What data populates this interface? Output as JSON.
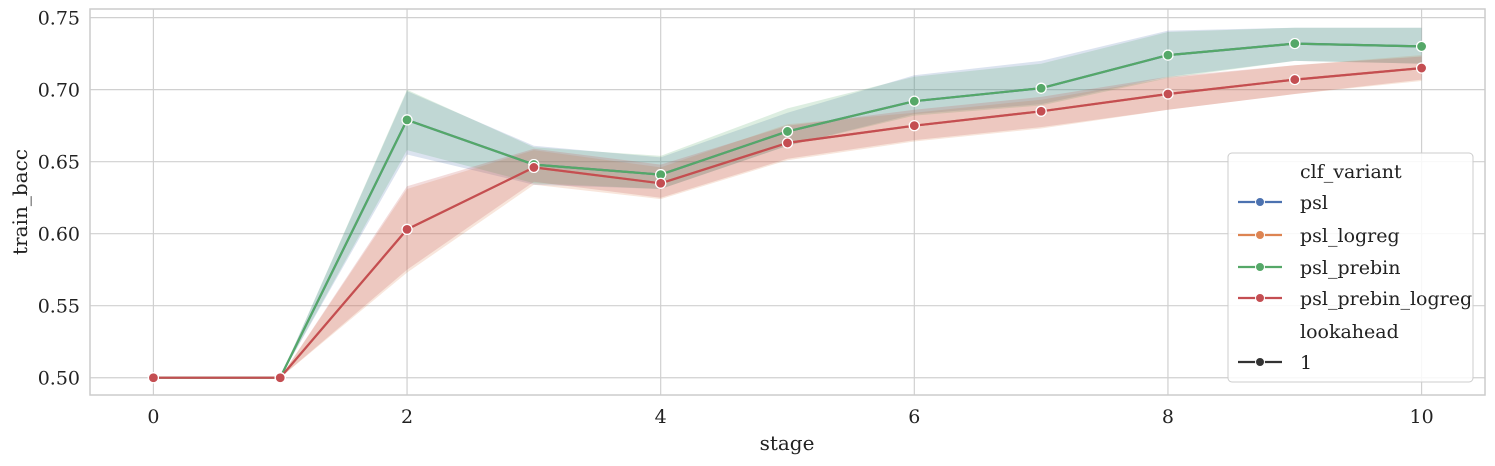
{
  "chart_data": {
    "type": "line",
    "title": "",
    "xlabel": "stage",
    "ylabel": "train_bacc",
    "xlim": [
      -0.5,
      10.5
    ],
    "ylim": [
      0.488,
      0.756
    ],
    "xticks": [
      0,
      2,
      4,
      6,
      8,
      10
    ],
    "xtick_labels": [
      "0",
      "2",
      "4",
      "6",
      "8",
      "10"
    ],
    "yticks": [
      0.5,
      0.55,
      0.6,
      0.65,
      0.7,
      0.75
    ],
    "ytick_labels": [
      "0.50",
      "0.55",
      "0.60",
      "0.65",
      "0.70",
      "0.75"
    ],
    "grid": true,
    "legend_position": "right",
    "x": [
      0,
      1,
      2,
      3,
      4,
      5,
      6,
      7,
      8,
      9,
      10
    ],
    "series": [
      {
        "name": "psl",
        "color": "#4c72b0",
        "values": [
          0.5,
          0.5,
          0.679,
          0.648,
          0.641,
          0.671,
          0.692,
          0.701,
          0.724,
          0.732,
          0.73
        ],
        "ci_low": [
          0.5,
          0.5,
          0.655,
          0.634,
          0.631,
          0.661,
          0.683,
          0.69,
          0.709,
          0.72,
          0.718
        ],
        "ci_high": [
          0.5,
          0.5,
          0.699,
          0.661,
          0.653,
          0.684,
          0.71,
          0.72,
          0.741,
          0.743,
          0.743
        ]
      },
      {
        "name": "psl_logreg",
        "color": "#dd8452",
        "values": [
          0.5,
          0.5,
          0.603,
          0.646,
          0.635,
          0.663,
          0.675,
          0.685,
          0.697,
          0.707,
          0.715
        ],
        "ci_low": [
          0.5,
          0.5,
          0.573,
          0.634,
          0.624,
          0.651,
          0.664,
          0.673,
          0.686,
          0.697,
          0.706
        ],
        "ci_high": [
          0.5,
          0.5,
          0.631,
          0.658,
          0.646,
          0.676,
          0.684,
          0.693,
          0.708,
          0.717,
          0.724
        ]
      },
      {
        "name": "psl_prebin",
        "color": "#55a868",
        "values": [
          0.5,
          0.5,
          0.679,
          0.648,
          0.641,
          0.671,
          0.692,
          0.701,
          0.724,
          0.732,
          0.73
        ],
        "ci_low": [
          0.5,
          0.5,
          0.658,
          0.635,
          0.631,
          0.661,
          0.682,
          0.689,
          0.708,
          0.72,
          0.718
        ],
        "ci_high": [
          0.5,
          0.5,
          0.7,
          0.66,
          0.654,
          0.687,
          0.709,
          0.718,
          0.74,
          0.743,
          0.743
        ]
      },
      {
        "name": "psl_prebin_logreg",
        "color": "#c44e52",
        "values": [
          0.5,
          0.5,
          0.603,
          0.646,
          0.635,
          0.663,
          0.675,
          0.685,
          0.697,
          0.707,
          0.715
        ],
        "ci_low": [
          0.5,
          0.5,
          0.575,
          0.636,
          0.625,
          0.652,
          0.665,
          0.674,
          0.686,
          0.697,
          0.707
        ],
        "ci_high": [
          0.5,
          0.5,
          0.633,
          0.659,
          0.648,
          0.675,
          0.686,
          0.695,
          0.709,
          0.717,
          0.723
        ]
      }
    ],
    "legend": {
      "hue_title": "clf_variant",
      "hue_entries": [
        "psl",
        "psl_logreg",
        "psl_prebin",
        "psl_prebin_logreg"
      ],
      "style_title": "lookahead",
      "style_entries": [
        "1"
      ],
      "style_color": "#333333"
    }
  }
}
